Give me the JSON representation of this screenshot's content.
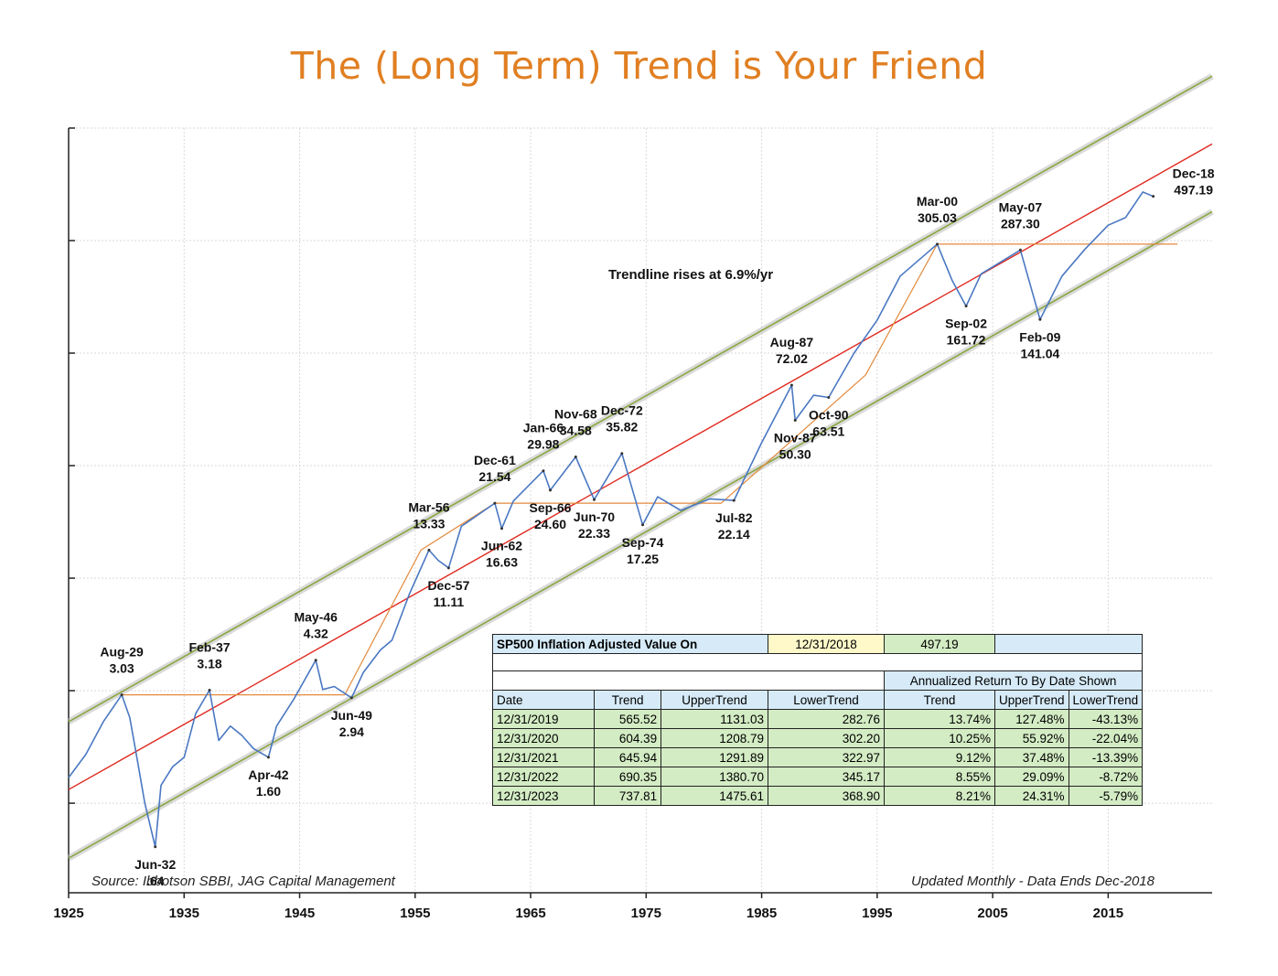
{
  "title": "The (Long Term) Trend is Your Friend",
  "colors": {
    "title": "#e07f22",
    "index_line": "#4a78c2",
    "trend_line": "#e0281f",
    "channel_line": "#8aa640",
    "step_line": "#e38a3d"
  },
  "notes": {
    "source": "Source: Ibbotson SBBI, JAG Capital Management",
    "updated": "Updated Monthly - Data Ends Dec-2018"
  },
  "chart_data": {
    "type": "line",
    "title": "The (Long Term) Trend is Your Friend",
    "xlabel": "",
    "ylabel": "",
    "x_ticks": [
      "1925",
      "1935",
      "1945",
      "1955",
      "1965",
      "1975",
      "1985",
      "1995",
      "2005",
      "2015"
    ],
    "xlim": [
      1925,
      2024
    ],
    "y_scale": "log",
    "ylim": [
      0.4,
      1000
    ],
    "grid": true,
    "annotation_text": "Trendline rises at 6.9%/yr",
    "series": [
      {
        "role": "index",
        "points": [
          [
            1925.0,
            1.3
          ],
          [
            1926.5,
            1.65
          ],
          [
            1928.0,
            2.3
          ],
          [
            1929.6,
            3.03
          ],
          [
            1930.3,
            2.4
          ],
          [
            1931.0,
            1.5
          ],
          [
            1931.6,
            1.0
          ],
          [
            1932.5,
            0.64
          ],
          [
            1933.0,
            1.2
          ],
          [
            1934.0,
            1.45
          ],
          [
            1935.0,
            1.6
          ],
          [
            1936.0,
            2.5
          ],
          [
            1937.2,
            3.18
          ],
          [
            1938.0,
            1.9
          ],
          [
            1939.0,
            2.2
          ],
          [
            1940.0,
            2.0
          ],
          [
            1941.0,
            1.75
          ],
          [
            1942.3,
            1.6
          ],
          [
            1943.0,
            2.2
          ],
          [
            1944.5,
            2.9
          ],
          [
            1946.4,
            4.32
          ],
          [
            1947.0,
            3.2
          ],
          [
            1948.0,
            3.3
          ],
          [
            1949.5,
            2.94
          ],
          [
            1950.5,
            3.8
          ],
          [
            1952.0,
            4.8
          ],
          [
            1953.0,
            5.3
          ],
          [
            1954.5,
            8.5
          ],
          [
            1956.2,
            13.33
          ],
          [
            1957.0,
            12.0
          ],
          [
            1957.9,
            11.11
          ],
          [
            1959.0,
            17.0
          ],
          [
            1961.9,
            21.54
          ],
          [
            1962.5,
            16.63
          ],
          [
            1963.5,
            22.0
          ],
          [
            1966.1,
            29.98
          ],
          [
            1966.7,
            24.6
          ],
          [
            1968.9,
            34.58
          ],
          [
            1970.5,
            22.33
          ],
          [
            1972.9,
            35.82
          ],
          [
            1974.7,
            17.25
          ],
          [
            1976.0,
            23.0
          ],
          [
            1978.0,
            20.0
          ],
          [
            1980.5,
            22.5
          ],
          [
            1982.6,
            22.14
          ],
          [
            1985.0,
            40.0
          ],
          [
            1987.6,
            72.02
          ],
          [
            1987.9,
            50.3
          ],
          [
            1989.5,
            65.0
          ],
          [
            1990.8,
            63.51
          ],
          [
            1993.0,
            100.0
          ],
          [
            1995.0,
            140.0
          ],
          [
            1997.0,
            220.0
          ],
          [
            2000.2,
            305.03
          ],
          [
            2001.5,
            210.0
          ],
          [
            2002.7,
            161.72
          ],
          [
            2004.0,
            225.0
          ],
          [
            2007.4,
            287.3
          ],
          [
            2009.1,
            141.04
          ],
          [
            2011.0,
            220.0
          ],
          [
            2013.0,
            290.0
          ],
          [
            2015.0,
            370.0
          ],
          [
            2016.5,
            400.0
          ],
          [
            2018.0,
            520.0
          ],
          [
            2018.9,
            497.19
          ]
        ]
      },
      {
        "role": "trend",
        "points": [
          [
            1925.0,
            1.15
          ],
          [
            2024.0,
            850.0
          ]
        ]
      },
      {
        "role": "upper_channel",
        "points": [
          [
            1925.0,
            2.3
          ],
          [
            2024.0,
            1700.0
          ]
        ]
      },
      {
        "role": "lower_channel",
        "points": [
          [
            1925.0,
            0.57
          ],
          [
            2024.0,
            425.0
          ]
        ]
      },
      {
        "role": "step",
        "points": [
          [
            1929.6,
            3.03
          ],
          [
            1948.9,
            3.03
          ],
          [
            1955.5,
            13.33
          ],
          [
            1961.9,
            21.54
          ],
          [
            1962.5,
            21.54
          ],
          [
            1981.5,
            21.54
          ],
          [
            1994.0,
            80.0
          ],
          [
            2000.2,
            305.03
          ],
          [
            2021.0,
            305.03
          ]
        ]
      }
    ],
    "peak_labels": [
      {
        "date": "Aug-29",
        "value": "3.03",
        "x": 1929.6,
        "y": 3.03
      },
      {
        "date": "Jun-32",
        "value": ".64",
        "x": 1932.5,
        "y": 0.64
      },
      {
        "date": "Feb-37",
        "value": "3.18",
        "x": 1937.2,
        "y": 3.18
      },
      {
        "date": "Apr-42",
        "value": "1.60",
        "x": 1942.3,
        "y": 1.6
      },
      {
        "date": "May-46",
        "value": "4.32",
        "x": 1946.4,
        "y": 4.32
      },
      {
        "date": "Jun-49",
        "value": "2.94",
        "x": 1949.5,
        "y": 2.94
      },
      {
        "date": "Mar-56",
        "value": "13.33",
        "x": 1956.2,
        "y": 13.33
      },
      {
        "date": "Dec-57",
        "value": "11.11",
        "x": 1957.9,
        "y": 11.11
      },
      {
        "date": "Dec-61",
        "value": "21.54",
        "x": 1961.9,
        "y": 21.54
      },
      {
        "date": "Jun-62",
        "value": "16.63",
        "x": 1962.5,
        "y": 16.63
      },
      {
        "date": "Jan-66",
        "value": "29.98",
        "x": 1966.1,
        "y": 29.98
      },
      {
        "date": "Sep-66",
        "value": "24.60",
        "x": 1966.7,
        "y": 24.6
      },
      {
        "date": "Nov-68",
        "value": "34.58",
        "x": 1968.9,
        "y": 34.58
      },
      {
        "date": "Jun-70",
        "value": "22.33",
        "x": 1970.5,
        "y": 22.33
      },
      {
        "date": "Dec-72",
        "value": "35.82",
        "x": 1972.9,
        "y": 35.82
      },
      {
        "date": "Sep-74",
        "value": "17.25",
        "x": 1974.7,
        "y": 17.25
      },
      {
        "date": "Jul-82",
        "value": "22.14",
        "x": 1982.6,
        "y": 22.14
      },
      {
        "date": "Aug-87",
        "value": "72.02",
        "x": 1987.6,
        "y": 72.02
      },
      {
        "date": "Nov-87",
        "value": "50.30",
        "x": 1987.9,
        "y": 50.3
      },
      {
        "date": "Oct-90",
        "value": "63.51",
        "x": 1990.8,
        "y": 63.51
      },
      {
        "date": "Mar-00",
        "value": "305.03",
        "x": 2000.2,
        "y": 305.03
      },
      {
        "date": "Sep-02",
        "value": "161.72",
        "x": 2002.7,
        "y": 161.72
      },
      {
        "date": "May-07",
        "value": "287.30",
        "x": 2007.4,
        "y": 287.3
      },
      {
        "date": "Feb-09",
        "value": "141.04",
        "x": 2009.1,
        "y": 141.04
      },
      {
        "date": "Dec-18",
        "value": "497.19",
        "x": 2018.9,
        "y": 497.19
      }
    ]
  },
  "table": {
    "header_label": "SP500 Inflation Adjusted Value On",
    "header_date": "12/31/2018",
    "header_value": "497.19",
    "group_label": "Annualized Return To By Date Shown",
    "columns": [
      "Date",
      "Trend",
      "UpperTrend",
      "LowerTrend",
      "Trend",
      "UpperTrend",
      "LowerTrend"
    ],
    "rows": [
      [
        "12/31/2019",
        "565.52",
        "1131.03",
        "282.76",
        "13.74%",
        "127.48%",
        "-43.13%"
      ],
      [
        "12/31/2020",
        "604.39",
        "1208.79",
        "302.20",
        "10.25%",
        "55.92%",
        "-22.04%"
      ],
      [
        "12/31/2021",
        "645.94",
        "1291.89",
        "322.97",
        "9.12%",
        "37.48%",
        "-13.39%"
      ],
      [
        "12/31/2022",
        "690.35",
        "1380.70",
        "345.17",
        "8.55%",
        "29.09%",
        "-8.72%"
      ],
      [
        "12/31/2023",
        "737.81",
        "1475.61",
        "368.90",
        "8.21%",
        "24.31%",
        "-5.79%"
      ]
    ]
  }
}
